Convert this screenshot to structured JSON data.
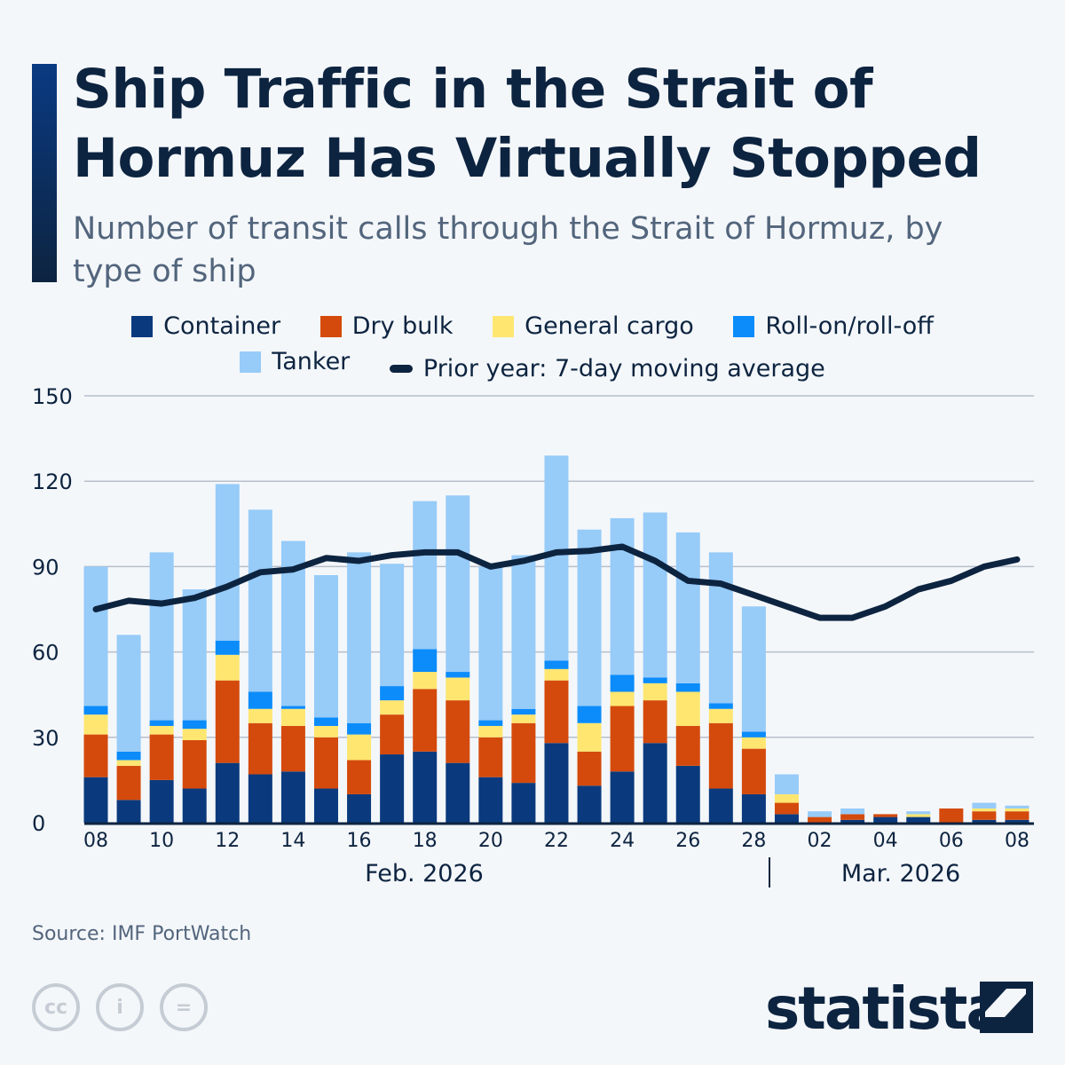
{
  "title": "Ship Traffic in the Strait of Hormuz Has Virtually Stopped",
  "subtitle": "Number of transit calls through the Strait of Hormuz, by type of ship",
  "source": "Source: IMF PortWatch",
  "brand": "statista",
  "license_icons": [
    "cc-icon",
    "attribution-icon",
    "no-derivatives-icon"
  ],
  "chart_data": {
    "type": "bar",
    "stacked": true,
    "title": "Ship Traffic in the Strait of Hormuz Has Virtually Stopped",
    "xlabel": "",
    "ylabel": "",
    "ylim": [
      0,
      150
    ],
    "yticks": [
      0,
      30,
      60,
      90,
      120,
      150
    ],
    "grid": true,
    "legend_position": "top",
    "categories": [
      "Feb 08",
      "Feb 09",
      "Feb 10",
      "Feb 11",
      "Feb 12",
      "Feb 13",
      "Feb 14",
      "Feb 15",
      "Feb 16",
      "Feb 17",
      "Feb 18",
      "Feb 19",
      "Feb 20",
      "Feb 21",
      "Feb 22",
      "Feb 23",
      "Feb 24",
      "Feb 25",
      "Feb 26",
      "Feb 27",
      "Feb 28",
      "Mar 01",
      "Mar 02",
      "Mar 03",
      "Mar 04",
      "Mar 05",
      "Mar 06",
      "Mar 07",
      "Mar 08"
    ],
    "xtick_labels": [
      "08",
      "",
      "10",
      "",
      "12",
      "",
      "14",
      "",
      "16",
      "",
      "18",
      "",
      "20",
      "",
      "22",
      "",
      "24",
      "",
      "26",
      "",
      "28",
      "",
      "02",
      "",
      "04",
      "",
      "06",
      "",
      "08"
    ],
    "month_labels": [
      "Feb. 2026",
      "Mar. 2026"
    ],
    "series": [
      {
        "name": "Container",
        "color": "#0a3a7d",
        "values": [
          16,
          8,
          15,
          12,
          21,
          17,
          18,
          12,
          10,
          24,
          25,
          21,
          16,
          14,
          28,
          13,
          18,
          28,
          20,
          12,
          10,
          3,
          0,
          1,
          2,
          2,
          0,
          1,
          1
        ]
      },
      {
        "name": "Dry bulk",
        "color": "#d44a0c",
        "values": [
          15,
          12,
          16,
          17,
          29,
          18,
          16,
          18,
          12,
          14,
          22,
          22,
          14,
          21,
          22,
          12,
          23,
          15,
          14,
          23,
          16,
          4,
          2,
          2,
          1,
          0,
          5,
          3,
          3
        ]
      },
      {
        "name": "General cargo",
        "color": "#fee671",
        "values": [
          7,
          2,
          3,
          4,
          9,
          5,
          6,
          4,
          9,
          5,
          6,
          8,
          4,
          3,
          4,
          10,
          5,
          6,
          12,
          5,
          4,
          3,
          0,
          0,
          0,
          1,
          0,
          1,
          1
        ]
      },
      {
        "name": "Roll-on/roll-off",
        "color": "#0b8cfa",
        "values": [
          3,
          3,
          2,
          3,
          5,
          6,
          1,
          3,
          4,
          5,
          8,
          2,
          2,
          2,
          3,
          6,
          6,
          2,
          3,
          2,
          2,
          0,
          0,
          0,
          0,
          0,
          0,
          0,
          0
        ]
      },
      {
        "name": "Tanker",
        "color": "#97cbf8",
        "values": [
          49,
          41,
          59,
          46,
          55,
          64,
          58,
          50,
          60,
          43,
          52,
          62,
          54,
          54,
          72,
          62,
          55,
          58,
          53,
          53,
          44,
          7,
          2,
          2,
          0,
          1,
          0,
          2,
          1
        ]
      }
    ],
    "line": {
      "name": "Prior year: 7-day moving average",
      "color": "#0d2440",
      "values": [
        75,
        78,
        77,
        79,
        83,
        88,
        89,
        93,
        92,
        94,
        95,
        95,
        90,
        92,
        95,
        95.5,
        97,
        92,
        85,
        84,
        80,
        76,
        72,
        72,
        76,
        82,
        85,
        90,
        92.5
      ]
    }
  }
}
